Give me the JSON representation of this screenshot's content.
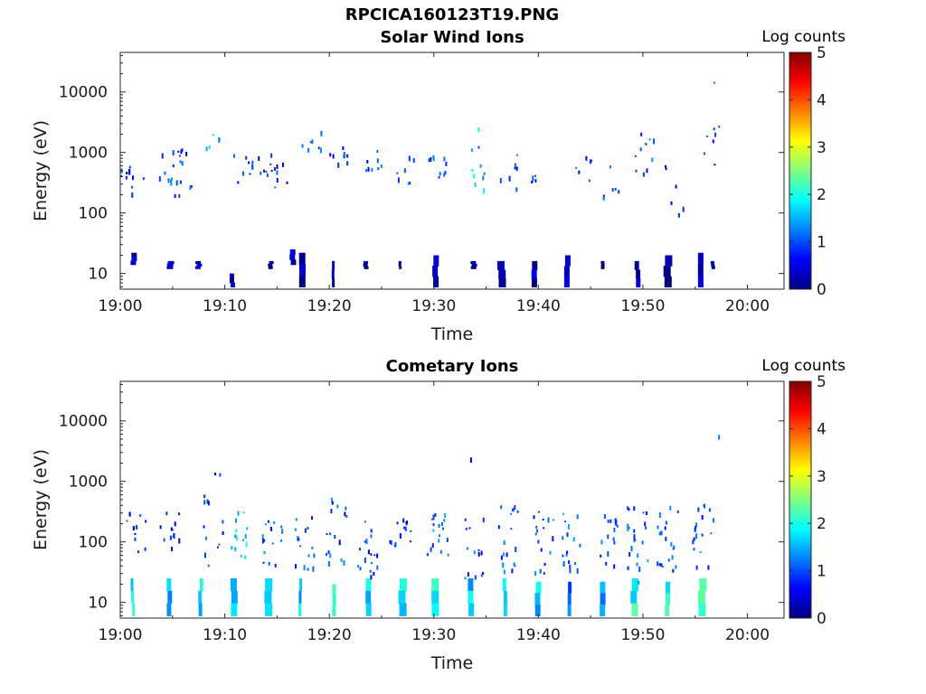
{
  "figure": {
    "title": "RPCICA160123T19.PNG"
  },
  "colormap": [
    "#000080",
    "#0000ff",
    "#0080ff",
    "#00ffff",
    "#80ff80",
    "#ffff00",
    "#ff8000",
    "#ff0000",
    "#800000"
  ],
  "chart_data": [
    {
      "type": "heatmap",
      "title": "Solar Wind Ions",
      "xlabel": "Time",
      "ylabel": "Energy (eV)",
      "x_ticks": [
        "19:00",
        "19:10",
        "19:20",
        "19:30",
        "19:40",
        "19:50",
        "20:00"
      ],
      "x_range_min": [
        0,
        63.5
      ],
      "y_scale": "log",
      "y_ticks": [
        "10",
        "100",
        "1000",
        "10000"
      ],
      "y_range_ev": [
        5.5,
        45000
      ],
      "colorbar": {
        "label": "Log counts",
        "range": [
          0,
          5
        ],
        "ticks": [
          "0",
          "1",
          "2",
          "3",
          "4",
          "5"
        ]
      },
      "clusters": [
        {
          "t": 0.9,
          "e_min": 380,
          "e_max": 620,
          "n": 6,
          "level": 0.7
        },
        {
          "t": 1.7,
          "e_min": 140,
          "e_max": 550,
          "n": 5,
          "level": 0.8
        },
        {
          "t": 4.7,
          "e_min": 180,
          "e_max": 1050,
          "n": 10,
          "level": 1.0
        },
        {
          "t": 5.5,
          "e_min": 600,
          "e_max": 1100,
          "n": 6,
          "level": 0.8
        },
        {
          "t": 6.3,
          "e_min": 200,
          "e_max": 800,
          "n": 6,
          "level": 0.9
        },
        {
          "t": 8.9,
          "e_min": 1100,
          "e_max": 2700,
          "n": 5,
          "level": 1.7
        },
        {
          "t": 11.7,
          "e_min": 220,
          "e_max": 900,
          "n": 9,
          "level": 0.9
        },
        {
          "t": 14.2,
          "e_min": 400,
          "e_max": 900,
          "n": 10,
          "level": 0.7
        },
        {
          "t": 15.6,
          "e_min": 180,
          "e_max": 700,
          "n": 5,
          "level": 0.9
        },
        {
          "t": 18.4,
          "e_min": 1000,
          "e_max": 2500,
          "n": 7,
          "level": 1.3
        },
        {
          "t": 20.8,
          "e_min": 600,
          "e_max": 1300,
          "n": 8,
          "level": 0.8
        },
        {
          "t": 24.2,
          "e_min": 500,
          "e_max": 1100,
          "n": 8,
          "level": 0.9
        },
        {
          "t": 27.5,
          "e_min": 300,
          "e_max": 900,
          "n": 8,
          "level": 1.0
        },
        {
          "t": 30.4,
          "e_min": 380,
          "e_max": 900,
          "n": 10,
          "level": 1.1
        },
        {
          "t": 34.3,
          "e_min": 220,
          "e_max": 2400,
          "n": 10,
          "level": 1.5
        },
        {
          "t": 37.0,
          "e_min": 200,
          "e_max": 950,
          "n": 8,
          "level": 0.9
        },
        {
          "t": 40.2,
          "e_min": 200,
          "e_max": 500,
          "n": 4,
          "level": 0.7
        },
        {
          "t": 44.2,
          "e_min": 300,
          "e_max": 950,
          "n": 6,
          "level": 0.8
        },
        {
          "t": 46.8,
          "e_min": 170,
          "e_max": 600,
          "n": 6,
          "level": 0.8
        },
        {
          "t": 50.3,
          "e_min": 300,
          "e_max": 2800,
          "n": 10,
          "level": 1.0
        },
        {
          "t": 53.1,
          "e_min": 80,
          "e_max": 700,
          "n": 6,
          "level": 0.8
        },
        {
          "t": 56.8,
          "e_min": 500,
          "e_max": 3300,
          "n": 7,
          "level": 0.8
        },
        {
          "t": 56.9,
          "e_min": 14000,
          "e_max": 15000,
          "n": 1,
          "level": 1.0
        }
      ],
      "low_energy_strips": [
        {
          "t": 1.3,
          "e_min": 14,
          "e_max": 22,
          "level": 0.2
        },
        {
          "t": 4.8,
          "e_min": 12,
          "e_max": 16,
          "level": 0.2
        },
        {
          "t": 7.5,
          "e_min": 12,
          "e_max": 16,
          "level": 0.2
        },
        {
          "t": 10.7,
          "e_min": 6,
          "e_max": 10,
          "level": 0.2
        },
        {
          "t": 14.4,
          "e_min": 12,
          "e_max": 16,
          "level": 0.2
        },
        {
          "t": 16.5,
          "e_min": 14,
          "e_max": 25,
          "level": 0.2
        },
        {
          "t": 17.4,
          "e_min": 6,
          "e_max": 22,
          "level": 0.2
        },
        {
          "t": 20.4,
          "e_min": 6,
          "e_max": 16,
          "level": 0.2
        },
        {
          "t": 23.5,
          "e_min": 12,
          "e_max": 16,
          "level": 0.2
        },
        {
          "t": 26.8,
          "e_min": 12,
          "e_max": 16,
          "level": 0.2
        },
        {
          "t": 30.2,
          "e_min": 6,
          "e_max": 20,
          "level": 0.2
        },
        {
          "t": 33.8,
          "e_min": 12,
          "e_max": 16,
          "level": 0.2
        },
        {
          "t": 36.5,
          "e_min": 6,
          "e_max": 16,
          "level": 0.2
        },
        {
          "t": 39.6,
          "e_min": 6,
          "e_max": 16,
          "level": 0.2
        },
        {
          "t": 42.8,
          "e_min": 6,
          "e_max": 20,
          "level": 0.2
        },
        {
          "t": 46.1,
          "e_min": 12,
          "e_max": 16,
          "level": 0.2
        },
        {
          "t": 49.5,
          "e_min": 6,
          "e_max": 16,
          "level": 0.2
        },
        {
          "t": 52.4,
          "e_min": 6,
          "e_max": 20,
          "level": 0.2
        },
        {
          "t": 55.5,
          "e_min": 6,
          "e_max": 22,
          "level": 0.2
        },
        {
          "t": 56.7,
          "e_min": 12,
          "e_max": 16,
          "level": 0.2
        }
      ]
    },
    {
      "type": "heatmap",
      "title": "Cometary Ions",
      "xlabel": "Time",
      "ylabel": "Energy (eV)",
      "x_ticks": [
        "19:00",
        "19:10",
        "19:20",
        "19:30",
        "19:40",
        "19:50",
        "20:00"
      ],
      "x_range_min": [
        0,
        63.5
      ],
      "y_scale": "log",
      "y_ticks": [
        "10",
        "100",
        "1000",
        "10000"
      ],
      "y_range_ev": [
        5.5,
        45000
      ],
      "colorbar": {
        "label": "Log counts",
        "range": [
          0,
          5
        ],
        "ticks": [
          "0",
          "1",
          "2",
          "3",
          "4",
          "5"
        ]
      },
      "clusters": [
        {
          "t": 1.5,
          "e_min": 60,
          "e_max": 300,
          "n": 12,
          "level": 0.8
        },
        {
          "t": 4.8,
          "e_min": 50,
          "e_max": 400,
          "n": 12,
          "level": 0.8
        },
        {
          "t": 8.9,
          "e_min": 1100,
          "e_max": 1400,
          "n": 2,
          "level": 0.8
        },
        {
          "t": 9.0,
          "e_min": 40,
          "e_max": 700,
          "n": 12,
          "level": 0.9
        },
        {
          "t": 11.2,
          "e_min": 50,
          "e_max": 400,
          "n": 14,
          "level": 1.6
        },
        {
          "t": 14.6,
          "e_min": 40,
          "e_max": 250,
          "n": 16,
          "level": 1.0
        },
        {
          "t": 17.7,
          "e_min": 35,
          "e_max": 280,
          "n": 16,
          "level": 1.0
        },
        {
          "t": 20.7,
          "e_min": 40,
          "e_max": 500,
          "n": 18,
          "level": 1.0
        },
        {
          "t": 23.6,
          "e_min": 25,
          "e_max": 280,
          "n": 18,
          "level": 0.9
        },
        {
          "t": 26.8,
          "e_min": 60,
          "e_max": 300,
          "n": 14,
          "level": 0.8
        },
        {
          "t": 30.4,
          "e_min": 60,
          "e_max": 320,
          "n": 18,
          "level": 1.1
        },
        {
          "t": 33.8,
          "e_min": 25,
          "e_max": 320,
          "n": 14,
          "level": 1.0
        },
        {
          "t": 34.3,
          "e_min": 2200,
          "e_max": 2500,
          "n": 1,
          "level": 0.8
        },
        {
          "t": 37.1,
          "e_min": 30,
          "e_max": 380,
          "n": 18,
          "level": 1.0
        },
        {
          "t": 40.5,
          "e_min": 30,
          "e_max": 350,
          "n": 18,
          "level": 1.0
        },
        {
          "t": 43.3,
          "e_min": 30,
          "e_max": 300,
          "n": 18,
          "level": 1.1
        },
        {
          "t": 46.6,
          "e_min": 35,
          "e_max": 300,
          "n": 16,
          "level": 1.0
        },
        {
          "t": 49.5,
          "e_min": 20,
          "e_max": 550,
          "n": 24,
          "level": 1.1
        },
        {
          "t": 52.4,
          "e_min": 30,
          "e_max": 500,
          "n": 20,
          "level": 1.0
        },
        {
          "t": 55.8,
          "e_min": 30,
          "e_max": 400,
          "n": 18,
          "level": 1.0
        },
        {
          "t": 56.8,
          "e_min": 5000,
          "e_max": 5500,
          "n": 1,
          "level": 1.0
        }
      ],
      "low_energy_strips": [
        {
          "t": 1.2,
          "e_min": 6,
          "e_max": 25,
          "level": 1.9
        },
        {
          "t": 4.7,
          "e_min": 6,
          "e_max": 25,
          "level": 1.6
        },
        {
          "t": 7.7,
          "e_min": 6,
          "e_max": 25,
          "level": 1.8
        },
        {
          "t": 10.9,
          "e_min": 6,
          "e_max": 25,
          "level": 1.5
        },
        {
          "t": 14.2,
          "e_min": 6,
          "e_max": 25,
          "level": 1.8
        },
        {
          "t": 17.2,
          "e_min": 6,
          "e_max": 25,
          "level": 1.5
        },
        {
          "t": 20.5,
          "e_min": 6,
          "e_max": 20,
          "level": 2.0
        },
        {
          "t": 23.8,
          "e_min": 6,
          "e_max": 25,
          "level": 1.7
        },
        {
          "t": 27.0,
          "e_min": 6,
          "e_max": 25,
          "level": 1.8
        },
        {
          "t": 30.1,
          "e_min": 6,
          "e_max": 25,
          "level": 1.9
        },
        {
          "t": 33.5,
          "e_min": 6,
          "e_max": 25,
          "level": 1.7
        },
        {
          "t": 36.8,
          "e_min": 6,
          "e_max": 25,
          "level": 2.0
        },
        {
          "t": 40.0,
          "e_min": 6,
          "e_max": 22,
          "level": 1.6
        },
        {
          "t": 43.0,
          "e_min": 6,
          "e_max": 22,
          "level": 1.2
        },
        {
          "t": 46.2,
          "e_min": 6,
          "e_max": 22,
          "level": 1.5
        },
        {
          "t": 49.2,
          "e_min": 6,
          "e_max": 25,
          "level": 2.0
        },
        {
          "t": 52.3,
          "e_min": 6,
          "e_max": 22,
          "level": 1.9
        },
        {
          "t": 55.7,
          "e_min": 6,
          "e_max": 25,
          "level": 2.1
        }
      ]
    }
  ]
}
